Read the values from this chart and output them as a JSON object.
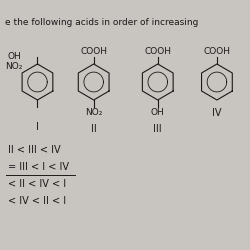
{
  "title_line1": "e the following acids in order of increasing",
  "compound_I_top": "OH",
  "compound_I_sub": "NO₂",
  "compound_I_label": "I",
  "compound_II_top": "COOH",
  "compound_II_sub": "NO₂",
  "compound_II_label": "II",
  "compound_III_top": "COOH",
  "compound_III_sub": "OH",
  "compound_III_label": "III",
  "compound_IV_top": "COOH",
  "compound_IV_sub": "",
  "compound_IV_label": "IV",
  "options": [
    "II < III < IV",
    "= III < I < IV",
    "< II < IV < I",
    "< IV < II < I"
  ],
  "highlighted_option": 1,
  "bg_color": "#c8c4c0",
  "text_color": "#1a1a1a",
  "ring_color": "#1a1a1a",
  "title_fontsize": 6.5,
  "body_fontsize": 6.5,
  "option_fontsize": 7.0
}
